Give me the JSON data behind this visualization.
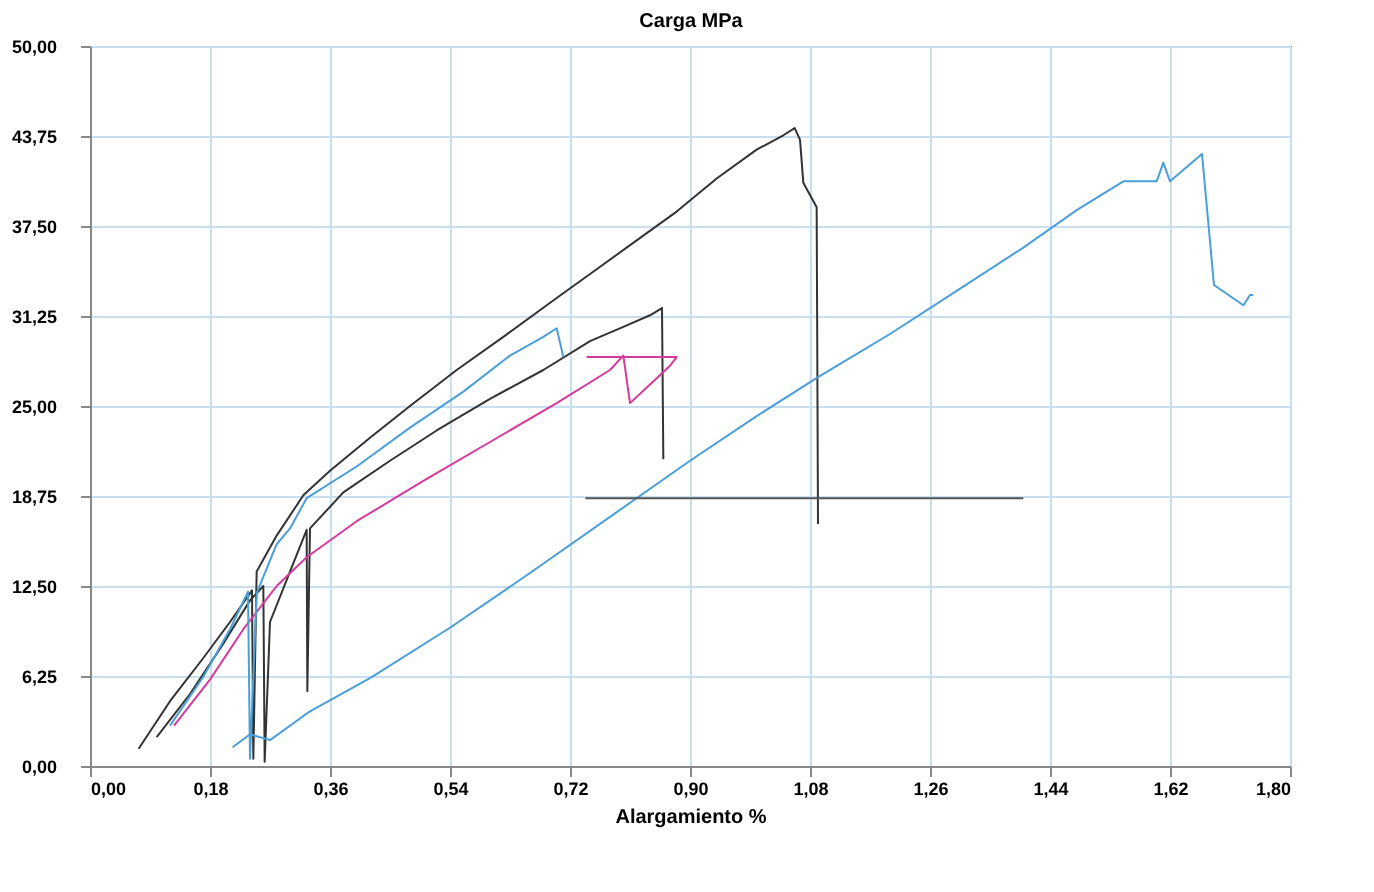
{
  "chart_data": {
    "type": "line",
    "ylabel": "Carga   MPa",
    "xlabel": "Alargamiento   %",
    "xlim": [
      0,
      1.8
    ],
    "ylim": [
      0,
      50
    ],
    "xticks": [
      {
        "value": 0,
        "label": "0,00"
      },
      {
        "value": 0.18,
        "label": "0,18"
      },
      {
        "value": 0.36,
        "label": "0,36"
      },
      {
        "value": 0.54,
        "label": "0,54"
      },
      {
        "value": 0.72,
        "label": "0,72"
      },
      {
        "value": 0.9,
        "label": "0,90"
      },
      {
        "value": 1.08,
        "label": "1,08"
      },
      {
        "value": 1.26,
        "label": "1,26"
      },
      {
        "value": 1.44,
        "label": "1,44"
      },
      {
        "value": 1.62,
        "label": "1,62"
      },
      {
        "value": 1.8,
        "label": "1,80"
      }
    ],
    "yticks": [
      {
        "value": 0,
        "label": "0,00"
      },
      {
        "value": 6.25,
        "label": "6,25"
      },
      {
        "value": 12.5,
        "label": "12,50"
      },
      {
        "value": 18.75,
        "label": "18,75"
      },
      {
        "value": 25,
        "label": "25,00"
      },
      {
        "value": 31.25,
        "label": "31,25"
      },
      {
        "value": 37.5,
        "label": "37,50"
      },
      {
        "value": 43.75,
        "label": "43,75"
      },
      {
        "value": 50,
        "label": "50,00"
      }
    ],
    "grid": true,
    "marker": "none",
    "line_style": "solid",
    "series": [
      {
        "color": "#333333",
        "x": [
          0.073,
          0.12,
          0.17,
          0.21,
          0.243,
          0.245,
          0.25,
          0.28,
          0.32,
          0.36,
          0.42,
          0.48,
          0.55,
          0.62,
          0.7,
          0.76,
          0.82,
          0.88,
          0.94,
          1.0,
          1.04,
          1.057,
          1.065,
          1.07,
          1.09,
          1.092
        ],
        "values": [
          1.2,
          4.5,
          7.5,
          10.0,
          12.2,
          0.5,
          13.5,
          16.0,
          18.8,
          20.5,
          22.8,
          25.0,
          27.5,
          29.8,
          32.5,
          34.5,
          36.5,
          38.5,
          40.8,
          42.8,
          43.8,
          44.3,
          43.5,
          40.5,
          38.8,
          16.8
        ]
      },
      {
        "color": "#333333",
        "x": [
          0.1,
          0.15,
          0.2,
          0.24,
          0.26,
          0.262,
          0.27,
          0.3,
          0.325,
          0.326,
          0.33,
          0.38,
          0.45,
          0.52,
          0.6,
          0.68,
          0.75,
          0.8,
          0.84,
          0.858,
          0.86
        ],
        "values": [
          2.0,
          5.0,
          8.5,
          11.5,
          12.5,
          0.3,
          10.0,
          13.5,
          16.4,
          5.2,
          16.5,
          19.0,
          21.2,
          23.3,
          25.5,
          27.5,
          29.5,
          30.5,
          31.3,
          31.8,
          21.3
        ]
      },
      {
        "color": "#d6399c",
        "x": [
          0.126,
          0.18,
          0.23,
          0.28,
          0.325,
          0.4,
          0.5,
          0.6,
          0.7,
          0.78,
          0.8,
          0.81,
          0.84,
          0.87,
          0.88,
          0.745
        ],
        "values": [
          2.8,
          6.0,
          9.5,
          12.5,
          14.5,
          17.0,
          19.8,
          22.5,
          25.2,
          27.5,
          28.5,
          25.2,
          26.5,
          27.8,
          28.4,
          28.4
        ]
      },
      {
        "color": "#4a9fd8",
        "x": [
          0.12,
          0.17,
          0.21,
          0.237,
          0.24,
          0.25,
          0.28,
          0.3,
          0.325,
          0.4,
          0.48,
          0.56,
          0.63,
          0.68,
          0.7,
          0.71
        ],
        "values": [
          2.8,
          6.2,
          9.5,
          12.1,
          0.5,
          12.0,
          15.4,
          16.5,
          18.6,
          20.8,
          23.5,
          26.0,
          28.5,
          29.8,
          30.4,
          28.4
        ]
      },
      {
        "color": "#4a9fd8",
        "x": [
          0.214,
          0.24,
          0.27,
          0.33,
          0.42,
          0.54,
          0.66,
          0.78,
          0.9,
          1.0,
          1.092,
          1.2,
          1.3,
          1.4,
          1.48,
          1.55,
          1.6,
          1.61,
          1.62,
          1.668,
          1.686,
          1.73,
          1.74,
          1.745
        ],
        "values": [
          1.3,
          2.2,
          1.8,
          3.8,
          6.1,
          9.6,
          13.4,
          17.3,
          21.2,
          24.3,
          27.0,
          30.0,
          33.0,
          36.0,
          38.6,
          40.6,
          40.6,
          41.9,
          40.6,
          42.5,
          33.4,
          32.0,
          32.7,
          32.7
        ]
      },
      {
        "color": "#555555",
        "x": [
          0.743,
          1.4
        ],
        "values": [
          18.6,
          18.6
        ]
      }
    ]
  }
}
